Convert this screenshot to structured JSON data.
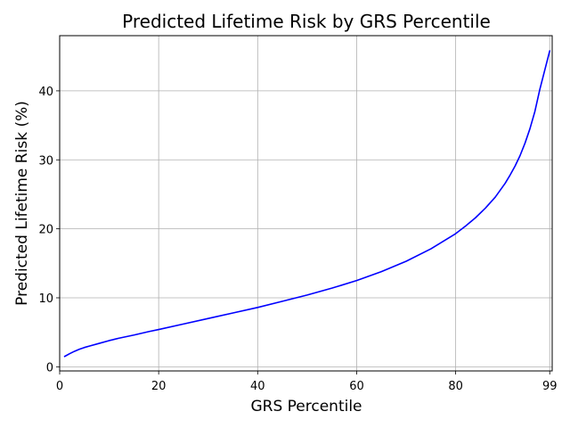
{
  "chart_data": {
    "type": "line",
    "title": "Predicted Lifetime Risk by GRS Percentile",
    "xlabel": "GRS Percentile",
    "ylabel": "Predicted Lifetime Risk (%)",
    "xlim": [
      0,
      99.5
    ],
    "ylim": [
      -0.6,
      48
    ],
    "xticks": [
      0,
      20,
      40,
      60,
      80,
      99
    ],
    "yticks": [
      0,
      10,
      20,
      30,
      40
    ],
    "grid": true,
    "legend": "none",
    "series": [
      {
        "color": "#0000ff",
        "x": [
          1,
          2,
          3,
          4,
          5,
          6,
          8,
          10,
          12,
          15,
          18,
          20,
          25,
          30,
          35,
          40,
          45,
          50,
          55,
          60,
          65,
          70,
          75,
          80,
          82,
          84,
          86,
          88,
          90,
          91,
          92,
          93,
          94,
          95,
          96,
          97,
          98,
          99
        ],
        "y": [
          1.5,
          1.9,
          2.25,
          2.55,
          2.8,
          3.0,
          3.4,
          3.8,
          4.15,
          4.6,
          5.1,
          5.4,
          6.2,
          7.0,
          7.8,
          8.6,
          9.5,
          10.4,
          11.4,
          12.5,
          13.8,
          15.3,
          17.1,
          19.3,
          20.4,
          21.6,
          23.0,
          24.6,
          26.6,
          27.8,
          29.1,
          30.6,
          32.4,
          34.5,
          37.0,
          40.2,
          43.0,
          45.8
        ]
      }
    ]
  }
}
